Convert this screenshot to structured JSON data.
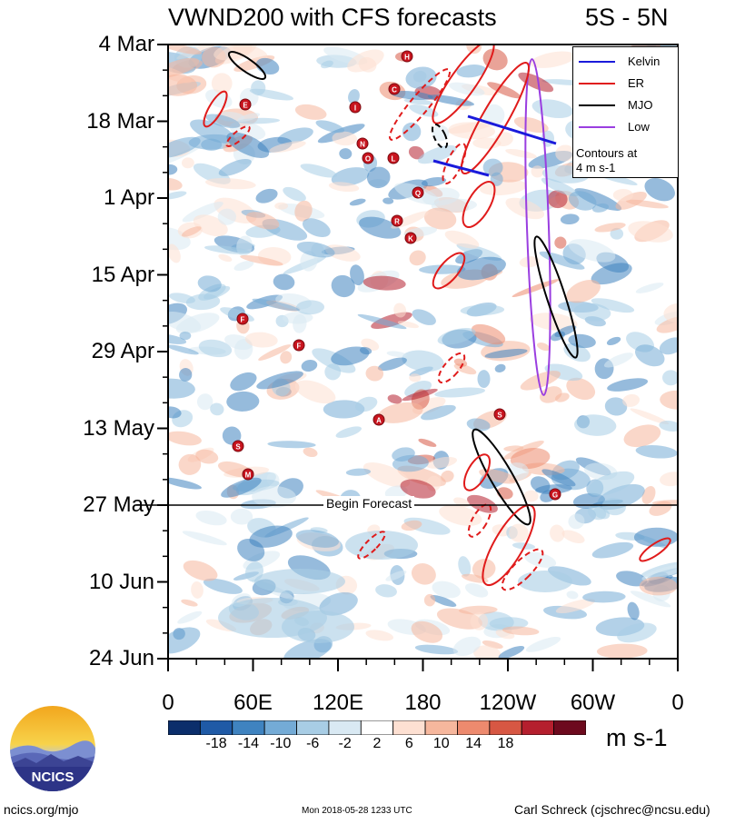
{
  "header": {
    "title": "VWND200 with CFS forecasts",
    "region": "5S - 5N"
  },
  "chart_data": {
    "type": "heatmap",
    "title": "VWND200 with CFS forecasts",
    "subtitle": "5S - 5N",
    "x_tick_labels": [
      "0",
      "60E",
      "120E",
      "180",
      "120W",
      "60W",
      "0"
    ],
    "y_tick_labels": [
      "4 Mar",
      "18 Mar",
      "1 Apr",
      "15 Apr",
      "29 Apr",
      "13 May",
      "27 May",
      "10 Jun",
      "24 Jun"
    ],
    "xlim": [
      0,
      360
    ],
    "y_range": [
      "4 Mar",
      "24 Jun"
    ],
    "forecast_start": "27 May",
    "forecast_label": "Begin Forecast",
    "colorbar": {
      "tick_labels": [
        "-18",
        "-14",
        "-10",
        "-6",
        "-2",
        "2",
        "6",
        "10",
        "14",
        "18"
      ],
      "units": "m s-1",
      "colors": [
        "#0b2e6b",
        "#1f5aa6",
        "#3f83c0",
        "#74abd6",
        "#a8cde5",
        "#d9e9f3",
        "#ffffff",
        "#fde0d2",
        "#f6b79d",
        "#ed8a6e",
        "#d75743",
        "#b51f2e",
        "#6d0a1e"
      ]
    },
    "legend": {
      "placement": "top-right",
      "entries": [
        {
          "name": "Kelvin",
          "color": "#1a1adb"
        },
        {
          "name": "ER",
          "color": "#e01b1b"
        },
        {
          "name": "MJO",
          "color": "#000000"
        },
        {
          "name": "Low",
          "color": "#9a3ee0"
        }
      ],
      "note_line1": "Contours at",
      "note_line2": "4 m s-1"
    },
    "storm_markers": [
      "H",
      "C",
      "E",
      "I",
      "N",
      "O",
      "L",
      "Q",
      "R",
      "K",
      "F",
      "F",
      "A",
      "S",
      "M",
      "S",
      "G"
    ]
  },
  "footer": {
    "logo_text": "NCICS",
    "site": "ncics.org/mjo",
    "timestamp": "Mon 2018-05-28 1233 UTC",
    "author": "Carl Schreck (cjschrec@ncsu.edu)"
  }
}
